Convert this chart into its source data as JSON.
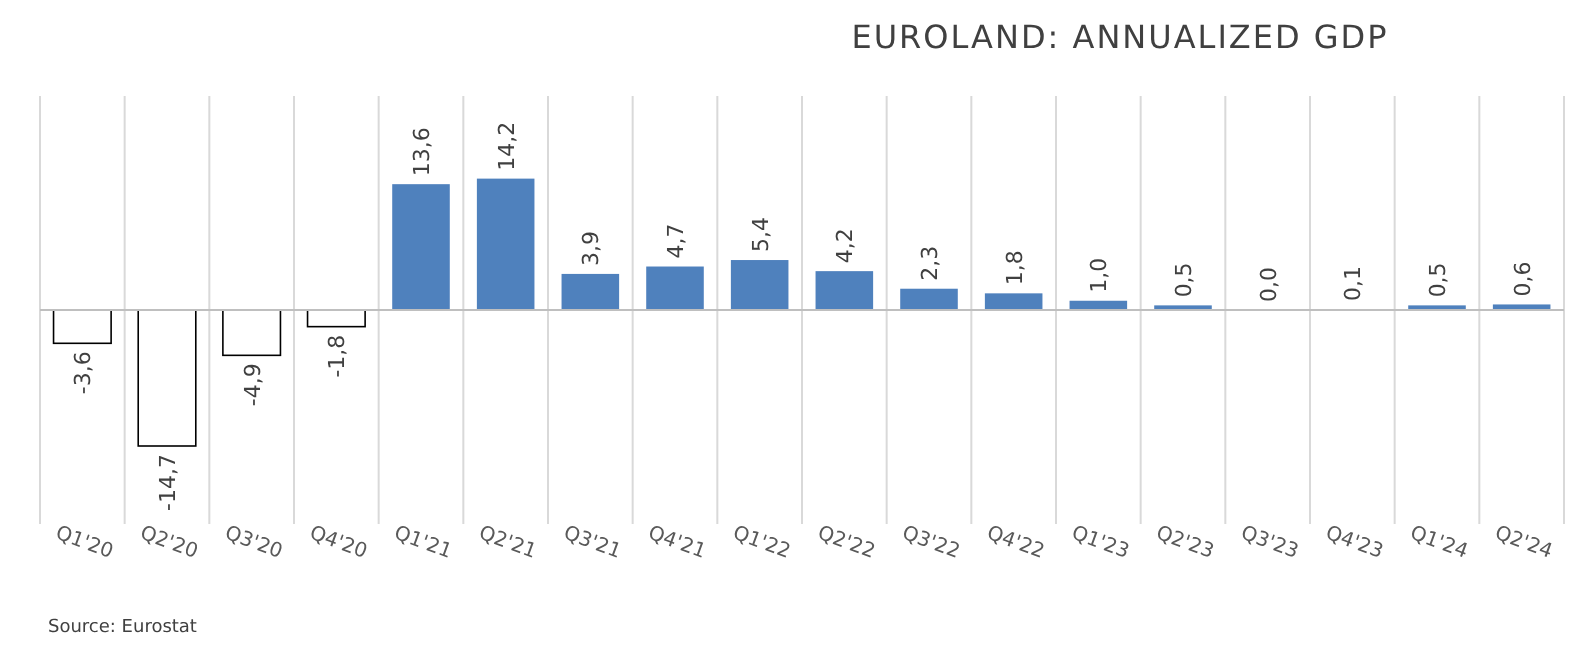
{
  "chart_data": {
    "type": "bar",
    "title": "EUROLAND: ANNUALIZED GDP",
    "categories": [
      "Q1'20",
      "Q2'20",
      "Q3'20",
      "Q4'20",
      "Q1'21",
      "Q2'21",
      "Q3'21",
      "Q4'21",
      "Q1'22",
      "Q2'22",
      "Q3'22",
      "Q4'22",
      "Q1'23",
      "Q2'23",
      "Q3'23",
      "Q4'23",
      "Q1'24",
      "Q2'24"
    ],
    "values": [
      -3.6,
      -14.7,
      -4.9,
      -1.8,
      13.6,
      14.2,
      3.9,
      4.7,
      5.4,
      4.2,
      2.3,
      1.8,
      1.0,
      0.5,
      0.0,
      0.1,
      0.5,
      0.6
    ],
    "value_labels": [
      "-3,6",
      "-14,7",
      "-4,9",
      "-1,8",
      "13,6",
      "14,2",
      "3,9",
      "4,7",
      "5,4",
      "4,2",
      "2,3",
      "1,8",
      "1,0",
      "0,5",
      "0,0",
      "0,1",
      "0,5",
      "0,6"
    ],
    "colors": [
      "#ffffff",
      "#ffffff",
      "#ffffff",
      "#ffffff",
      "#4f81bd",
      "#4f81bd",
      "#4f81bd",
      "#4f81bd",
      "#4f81bd",
      "#4f81bd",
      "#4f81bd",
      "#4f81bd",
      "#4f81bd",
      "#4f81bd",
      "#4f81bd",
      "#4f81bd",
      "#4f81bd",
      "#4f81bd"
    ],
    "grid": "x",
    "annotations": [
      "Source: Eurostat"
    ]
  }
}
